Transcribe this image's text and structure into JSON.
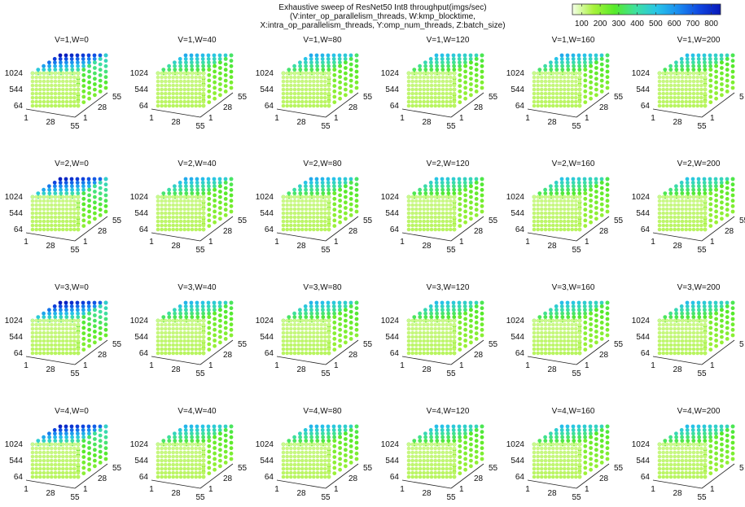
{
  "title": {
    "line1": "Exhaustive sweep of ResNet50 Int8 throughput(imgs/sec)",
    "line2": "(V:inter_op_parallelism_threads, W:kmp_blocktime,",
    "line3": "X:intra_op_parallelism_threads, Y:omp_num_threads, Z:batch_size)"
  },
  "colorbar": {
    "min": 50,
    "max": 850,
    "ticks": [
      "100",
      "200",
      "300",
      "400",
      "500",
      "600",
      "700",
      "800"
    ],
    "tick_values": [
      100,
      200,
      300,
      400,
      500,
      600,
      700,
      800
    ],
    "palette": [
      "#f4ffe8",
      "#a8f23a",
      "#56ea2a",
      "#3ee0a0",
      "#28c4e8",
      "#1a8cf0",
      "#1046e0",
      "#0818b8"
    ]
  },
  "chart_data": {
    "type": "scatter3d",
    "grid": {
      "rows": 4,
      "cols": 6
    },
    "panels": [
      {
        "title": "V=1,W=0",
        "V": 1,
        "W": 0,
        "peak": 850,
        "y_ticks": [
          "1",
          "28",
          "55"
        ]
      },
      {
        "title": "V=1,W=40",
        "V": 1,
        "W": 40,
        "peak": 560,
        "y_ticks": [
          "1",
          "28",
          "55"
        ]
      },
      {
        "title": "V=1,W=80",
        "V": 1,
        "W": 80,
        "peak": 560,
        "y_ticks": [
          "1",
          "28",
          "55"
        ]
      },
      {
        "title": "V=1,W=120",
        "V": 1,
        "W": 120,
        "peak": 520,
        "y_ticks": [
          "1",
          "28",
          "55"
        ]
      },
      {
        "title": "V=1,W=160",
        "V": 1,
        "W": 160,
        "peak": 560,
        "y_ticks": [
          "1",
          "28",
          "55"
        ]
      },
      {
        "title": "V=1,W=200",
        "V": 1,
        "W": 200,
        "peak": 520,
        "y_ticks": [
          "1",
          "",
          "5"
        ]
      },
      {
        "title": "V=2,W=0",
        "V": 2,
        "W": 0,
        "peak": 830,
        "y_ticks": [
          "1",
          "28",
          "55"
        ]
      },
      {
        "title": "V=2,W=40",
        "V": 2,
        "W": 40,
        "peak": 560,
        "y_ticks": [
          "1",
          "28",
          "55"
        ]
      },
      {
        "title": "V=2,W=80",
        "V": 2,
        "W": 80,
        "peak": 560,
        "y_ticks": [
          "1",
          "28",
          "55"
        ]
      },
      {
        "title": "V=2,W=120",
        "V": 2,
        "W": 120,
        "peak": 500,
        "y_ticks": [
          "1",
          "28",
          "55"
        ]
      },
      {
        "title": "V=2,W=160",
        "V": 2,
        "W": 160,
        "peak": 500,
        "y_ticks": [
          "1",
          "28",
          "55"
        ]
      },
      {
        "title": "V=2,W=200",
        "V": 2,
        "W": 200,
        "peak": 500,
        "y_ticks": [
          "1",
          "28",
          "55"
        ]
      },
      {
        "title": "V=3,W=0",
        "V": 3,
        "W": 0,
        "peak": 840,
        "y_ticks": [
          "1",
          "28",
          "55"
        ]
      },
      {
        "title": "V=3,W=40",
        "V": 3,
        "W": 40,
        "peak": 540,
        "y_ticks": [
          "1",
          "28",
          "55"
        ]
      },
      {
        "title": "V=3,W=80",
        "V": 3,
        "W": 80,
        "peak": 540,
        "y_ticks": [
          "1",
          "28",
          "55"
        ]
      },
      {
        "title": "V=3,W=120",
        "V": 3,
        "W": 120,
        "peak": 520,
        "y_ticks": [
          "1",
          "28",
          "55"
        ]
      },
      {
        "title": "V=3,W=160",
        "V": 3,
        "W": 160,
        "peak": 520,
        "y_ticks": [
          "1",
          "28",
          "55"
        ]
      },
      {
        "title": "V=3,W=200",
        "V": 3,
        "W": 200,
        "peak": 520,
        "y_ticks": [
          "1",
          "",
          "5"
        ]
      },
      {
        "title": "V=4,W=0",
        "V": 4,
        "W": 0,
        "peak": 820,
        "y_ticks": [
          "1",
          "28",
          "55"
        ]
      },
      {
        "title": "V=4,W=40",
        "V": 4,
        "W": 40,
        "peak": 540,
        "y_ticks": [
          "1",
          "28",
          "55"
        ]
      },
      {
        "title": "V=4,W=80",
        "V": 4,
        "W": 80,
        "peak": 540,
        "y_ticks": [
          "1",
          "28",
          "55"
        ]
      },
      {
        "title": "V=4,W=120",
        "V": 4,
        "W": 120,
        "peak": 520,
        "y_ticks": [
          "1",
          "28",
          "55"
        ]
      },
      {
        "title": "V=4,W=160",
        "V": 4,
        "W": 160,
        "peak": 520,
        "y_ticks": [
          "1",
          "28",
          "55"
        ]
      },
      {
        "title": "V=4,W=200",
        "V": 4,
        "W": 200,
        "peak": 520,
        "y_ticks": [
          "1",
          "",
          "5"
        ]
      }
    ],
    "axes": {
      "x": {
        "range": [
          1,
          55
        ],
        "ticks": [
          "1",
          "28",
          "55"
        ]
      },
      "y": {
        "range": [
          1,
          55
        ]
      },
      "z": {
        "range": [
          64,
          1024
        ],
        "ticks": [
          "64",
          "544",
          "1024"
        ]
      }
    },
    "front_face_value": 150
  }
}
